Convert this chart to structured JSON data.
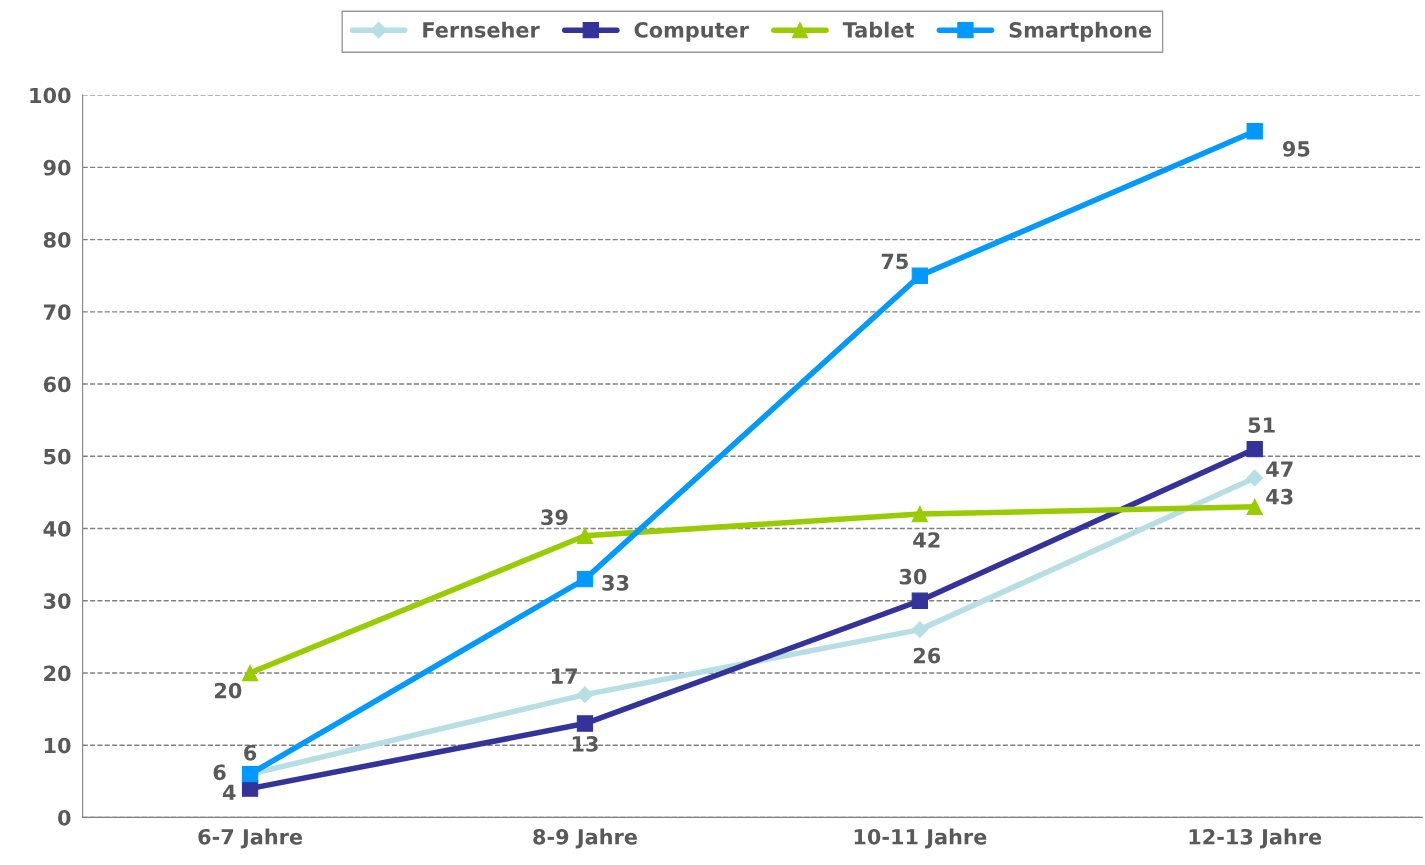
{
  "chart_data": {
    "type": "line",
    "categories": [
      "6-7 Jahre",
      "8-9 Jahre",
      "10-11 Jahre",
      "12-13 Jahre"
    ],
    "series": [
      {
        "name": "Fernseher",
        "color": "#b7dfe3",
        "marker": "diamond",
        "values": [
          6,
          17,
          26,
          47
        ]
      },
      {
        "name": "Computer",
        "color": "#333399",
        "marker": "square",
        "values": [
          4,
          13,
          30,
          51
        ]
      },
      {
        "name": "Tablet",
        "color": "#99cc00",
        "marker": "triangle",
        "values": [
          20,
          39,
          42,
          43
        ]
      },
      {
        "name": "Smartphone",
        "color": "#0099ff",
        "marker": "square",
        "values": [
          6,
          33,
          75,
          95
        ]
      }
    ],
    "ylim": [
      0,
      100
    ],
    "yticks": [
      0,
      10,
      20,
      30,
      40,
      50,
      60,
      70,
      80,
      90,
      100
    ],
    "grid": "y",
    "legend": "top",
    "data_labels": true,
    "line_style": "solid"
  }
}
